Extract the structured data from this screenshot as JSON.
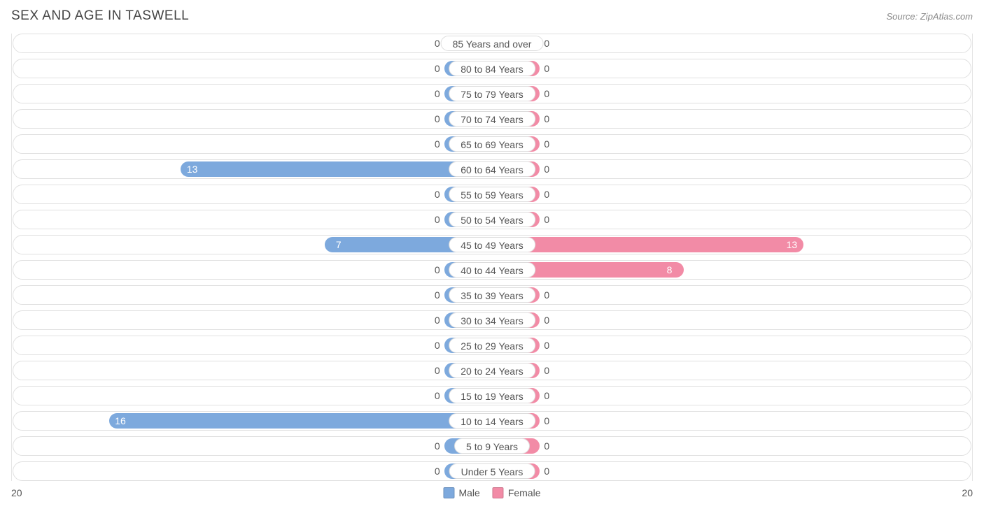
{
  "title": "SEX AND AGE IN TASWELL",
  "source": "Source: ZipAtlas.com",
  "chart": {
    "type": "population-pyramid",
    "axis_max": 20,
    "min_bar_units": 2.0,
    "colors": {
      "male": "#7da9dd",
      "female": "#f28ba6",
      "track_border": "#e0e0e0",
      "pill_border": "#dddddd",
      "text": "#555555",
      "in_bar_text": "#ffffff",
      "background": "#ffffff"
    },
    "legend": [
      {
        "label": "Male",
        "color": "#7da9dd"
      },
      {
        "label": "Female",
        "color": "#f28ba6"
      }
    ],
    "categories": [
      {
        "label": "85 Years and over",
        "male": 0,
        "female": 0
      },
      {
        "label": "80 to 84 Years",
        "male": 0,
        "female": 0
      },
      {
        "label": "75 to 79 Years",
        "male": 0,
        "female": 0
      },
      {
        "label": "70 to 74 Years",
        "male": 0,
        "female": 0
      },
      {
        "label": "65 to 69 Years",
        "male": 0,
        "female": 0
      },
      {
        "label": "60 to 64 Years",
        "male": 13,
        "female": 0
      },
      {
        "label": "55 to 59 Years",
        "male": 0,
        "female": 0
      },
      {
        "label": "50 to 54 Years",
        "male": 0,
        "female": 0
      },
      {
        "label": "45 to 49 Years",
        "male": 7,
        "female": 13
      },
      {
        "label": "40 to 44 Years",
        "male": 0,
        "female": 8
      },
      {
        "label": "35 to 39 Years",
        "male": 0,
        "female": 0
      },
      {
        "label": "30 to 34 Years",
        "male": 0,
        "female": 0
      },
      {
        "label": "25 to 29 Years",
        "male": 0,
        "female": 0
      },
      {
        "label": "20 to 24 Years",
        "male": 0,
        "female": 0
      },
      {
        "label": "15 to 19 Years",
        "male": 0,
        "female": 0
      },
      {
        "label": "10 to 14 Years",
        "male": 16,
        "female": 0
      },
      {
        "label": "5 to 9 Years",
        "male": 0,
        "female": 0
      },
      {
        "label": "Under 5 Years",
        "male": 0,
        "female": 0
      }
    ]
  }
}
